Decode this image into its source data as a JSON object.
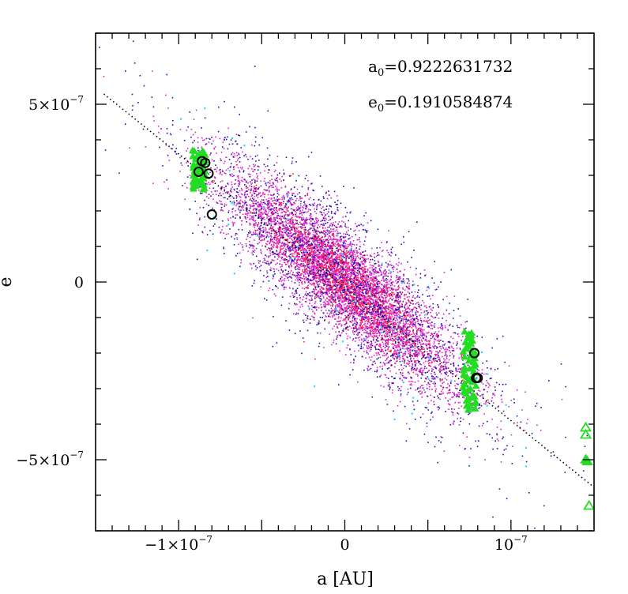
{
  "chart_data": {
    "type": "scatter",
    "title": "",
    "xlabel": "a [AU]",
    "ylabel": "e",
    "xlim": [
      -1.5e-07,
      1.5e-07
    ],
    "ylim": [
      -7e-07,
      7e-07
    ],
    "x_ticks": [
      {
        "value": -1e-07,
        "label_main": "−1×10",
        "label_exp": "−7"
      },
      {
        "value": 0,
        "label_main": "0",
        "label_exp": ""
      },
      {
        "value": 1e-07,
        "label_main": "10",
        "label_exp": "−7"
      }
    ],
    "y_ticks": [
      {
        "value": 5e-07,
        "label_main": "5×10",
        "label_exp": "−7"
      },
      {
        "value": 0,
        "label_main": "0",
        "label_exp": ""
      },
      {
        "value": -5e-07,
        "label_main": "−5×10",
        "label_exp": "−7"
      }
    ],
    "annotations": [
      {
        "base": "a",
        "sub": "0",
        "rest": "=0.9222631732"
      },
      {
        "base": "e",
        "sub": "0",
        "rest": "=0.1910584874"
      }
    ],
    "trend_line": {
      "slope": -3.75,
      "intercept": -1.5e-08,
      "style": "dotted",
      "color": "#000000"
    },
    "cloud": {
      "center": [
        0,
        0
      ],
      "relation": "e ≈ -3.75 · a",
      "a_sd": 3.6e-08,
      "e_scatter_sd": 7e-08,
      "series": [
        {
          "name": "magenta",
          "color": "#e020d0",
          "count": 5200
        },
        {
          "name": "red",
          "color": "#ff1a3a",
          "count": 1500
        },
        {
          "name": "blue",
          "color": "#1a10b8",
          "count": 1900
        },
        {
          "name": "cyan",
          "color": "#30d8ff",
          "count": 70
        }
      ]
    },
    "green_markers": {
      "color": "#22dd22",
      "groups": [
        {
          "a": -8.8e-08,
          "e_range": [
            2.6e-07,
            3.7e-07
          ]
        },
        {
          "a": 7.5e-08,
          "e_range": [
            -3.6e-07,
            -1.4e-07
          ]
        }
      ],
      "triangles_open": [
        {
          "a": 1.45e-07,
          "e": -4.1e-07
        },
        {
          "a": 1.45e-07,
          "e": -4.3e-07
        },
        {
          "a": 1.47e-07,
          "e": -6.3e-07
        }
      ],
      "triangles_filled": [
        {
          "a": 1.45e-07,
          "e": -5e-07
        },
        {
          "a": 1.46e-07,
          "e": -5.05e-07
        }
      ]
    },
    "black_circles": [
      {
        "a": -8.6e-08,
        "e": 3.4e-07
      },
      {
        "a": -8.8e-08,
        "e": 3.1e-07
      },
      {
        "a": -8.4e-08,
        "e": 3.35e-07
      },
      {
        "a": -8.2e-08,
        "e": 3.05e-07
      },
      {
        "a": -8e-08,
        "e": 1.9e-07
      },
      {
        "a": 7.8e-08,
        "e": -2e-07
      },
      {
        "a": 8e-08,
        "e": -2.7e-07
      },
      {
        "a": 7.9e-08,
        "e": -2.7e-07
      }
    ],
    "grid": false,
    "legend": "none"
  }
}
